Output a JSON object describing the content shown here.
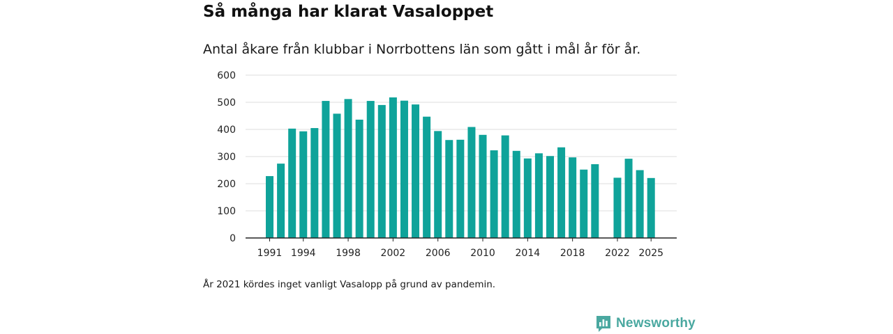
{
  "chart_data": {
    "type": "bar",
    "title": "Så många har klarat Vasaloppet",
    "subtitle": "Antal åkare från klubbar i Norrbottens län som gått i mål år för år.",
    "xlabel": "",
    "ylabel": "",
    "ylim": [
      0,
      600
    ],
    "yticks": [
      "0",
      "100",
      "200",
      "300",
      "400",
      "500",
      "600"
    ],
    "xticks": [
      "1991",
      "1994",
      "1998",
      "2002",
      "2006",
      "2010",
      "2014",
      "2018",
      "2022",
      "2025"
    ],
    "color": "#0fa39a",
    "grid": true,
    "categories": [
      1991,
      1992,
      1993,
      1994,
      1995,
      1996,
      1997,
      1998,
      1999,
      2000,
      2001,
      2002,
      2003,
      2004,
      2005,
      2006,
      2007,
      2008,
      2009,
      2010,
      2011,
      2012,
      2013,
      2014,
      2015,
      2016,
      2017,
      2018,
      2019,
      2020,
      2021,
      2022,
      2023,
      2024,
      2025
    ],
    "values": [
      228,
      274,
      403,
      393,
      405,
      505,
      458,
      512,
      436,
      505,
      490,
      518,
      506,
      492,
      447,
      394,
      361,
      362,
      409,
      380,
      323,
      378,
      321,
      293,
      312,
      302,
      334,
      297,
      252,
      272,
      null,
      222,
      292,
      250,
      221
    ]
  },
  "note": "År 2021 kördes inget vanligt Vasalopp på grund av pandemin.",
  "brand": {
    "name": "Newsworthy",
    "icon": "newsworthy-logo-icon",
    "color": "#4aa8a0"
  }
}
